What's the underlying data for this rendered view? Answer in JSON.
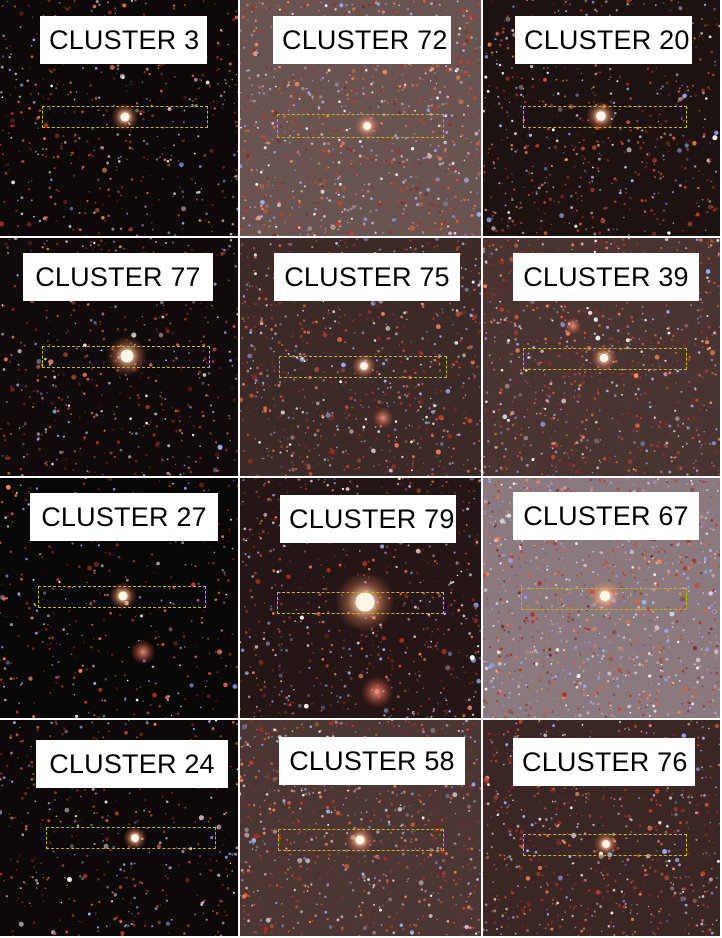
{
  "panels": [
    {
      "label": "CLUSTER 3",
      "background": "#0d0908"
    },
    {
      "label": "CLUSTER 72",
      "background": "#6a5452"
    },
    {
      "label": "CLUSTER 20",
      "background": "#1d1210"
    },
    {
      "label": "CLUSTER 77",
      "background": "#100b0a"
    },
    {
      "label": "CLUSTER 75",
      "background": "#3b2a28"
    },
    {
      "label": "CLUSTER 39",
      "background": "#4a3432"
    },
    {
      "label": "CLUSTER 27",
      "background": "#0a0707"
    },
    {
      "label": "CLUSTER 79",
      "background": "#241614"
    },
    {
      "label": "CLUSTER 67",
      "background": "#8a7a80"
    },
    {
      "label": "CLUSTER 24",
      "background": "#0c0908"
    },
    {
      "label": "CLUSTER 58",
      "background": "#4c3634"
    },
    {
      "label": "CLUSTER 76",
      "background": "#3a2624"
    }
  ],
  "colors": {
    "slit_outline": "#c8b400",
    "cluster_core": "#fff6e8",
    "label_background": "#ffffff"
  }
}
